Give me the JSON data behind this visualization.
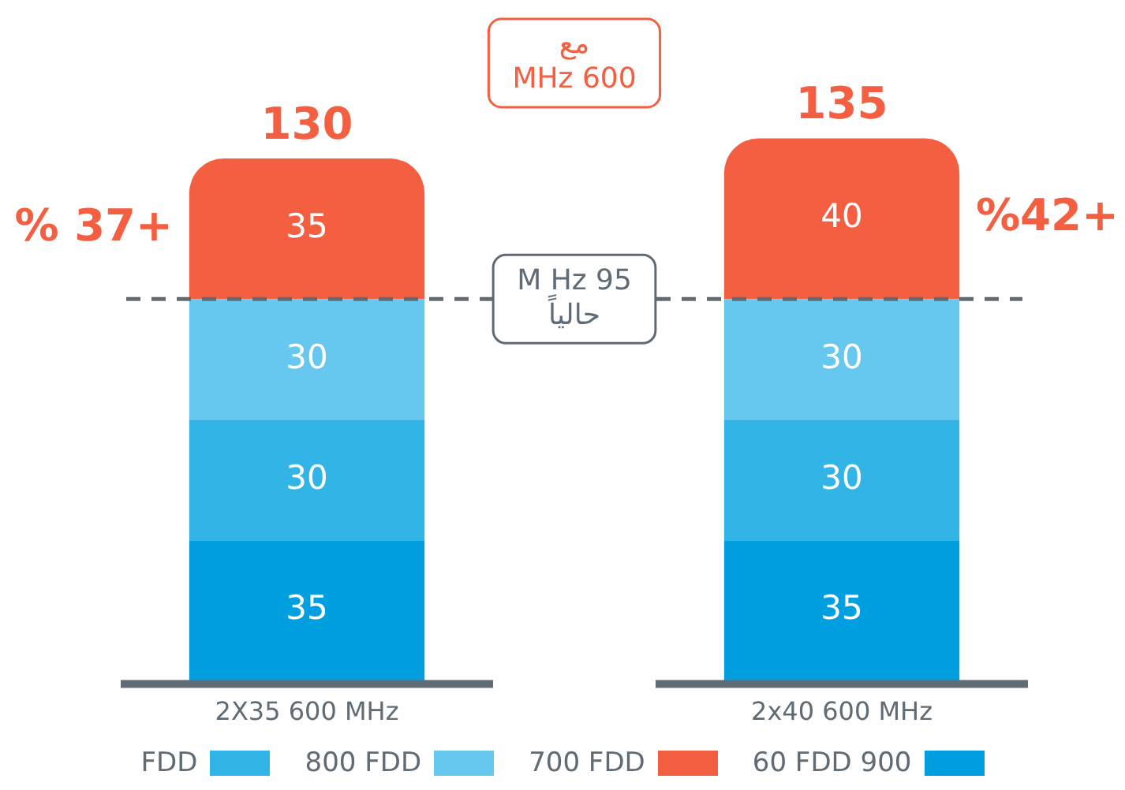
{
  "chart_data": {
    "type": "bar",
    "stacked": true,
    "categories": [
      "2X35 600 MHz",
      "2x40 600 MHz"
    ],
    "series": [
      {
        "name": "60 FDD 900",
        "color": "#00a0e0",
        "values": [
          35,
          35
        ]
      },
      {
        "name": "FDD",
        "color": "#33b4e6",
        "values": [
          30,
          30
        ]
      },
      {
        "name": "800 FDD",
        "color": "#66c8ee",
        "values": [
          30,
          30
        ]
      },
      {
        "name": "700 FDD",
        "color": "#f45e41",
        "values": [
          35,
          40
        ]
      }
    ],
    "data_labels": true,
    "totals": [
      "130",
      "135"
    ],
    "grid": false,
    "tick_labels": "x",
    "legend": "bottom",
    "ref_lines": [
      {
        "axis": "y",
        "value": 95,
        "label": "M Hz 95\nحالياً",
        "color": "#5f6b75",
        "line_style": "dashed"
      }
    ],
    "annotations": [
      "% 37+",
      "%42+",
      "مع\nMHz 600"
    ]
  }
}
